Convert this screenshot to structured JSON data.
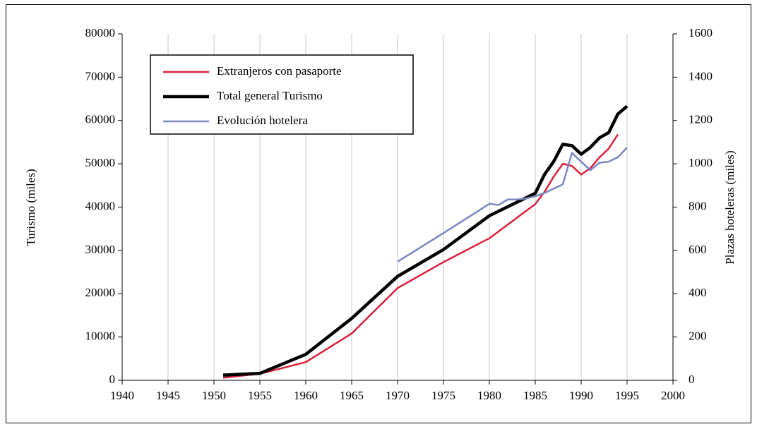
{
  "chart_data": {
    "type": "line",
    "ylabel": "Turismo (miles)",
    "y2label": "Plazas hoteleras (miles)",
    "xlim": [
      1940,
      2000
    ],
    "xticks": [
      1940,
      1945,
      1950,
      1955,
      1960,
      1965,
      1970,
      1975,
      1980,
      1985,
      1990,
      1995,
      2000
    ],
    "ylim": [
      0,
      80000
    ],
    "yticks": [
      0,
      10000,
      20000,
      30000,
      40000,
      50000,
      60000,
      70000,
      80000
    ],
    "y2lim": [
      0,
      1600
    ],
    "y2ticks": [
      0,
      200,
      400,
      600,
      800,
      1000,
      1200,
      1400,
      1600
    ],
    "grid": "x",
    "legend": "upper left",
    "series": [
      {
        "name": "Extranjeros con pasaporte",
        "color": "#d9213a",
        "width": 2.5,
        "x": [
          1951,
          1955,
          1960,
          1965,
          1970,
          1975,
          1980,
          1985,
          1986,
          1987,
          1988,
          1989,
          1990,
          1991,
          1992,
          1993,
          1994
        ],
        "values": [
          600,
          1500,
          4200,
          10800,
          21300,
          27300,
          32800,
          40700,
          43500,
          47000,
          50000,
          49500,
          47500,
          49000,
          51500,
          53500,
          56800
        ]
      },
      {
        "name": "Total general Turismo",
        "color": "#000000",
        "width": 4.5,
        "x": [
          1951,
          1955,
          1960,
          1965,
          1970,
          1975,
          1980,
          1985,
          1986,
          1987,
          1988,
          1989,
          1990,
          1991,
          1992,
          1993,
          1994,
          1995
        ],
        "values": [
          1200,
          1600,
          6000,
          14300,
          24000,
          30200,
          38000,
          43200,
          47500,
          50500,
          54500,
          54200,
          52200,
          53800,
          56000,
          57200,
          61500,
          63300
        ]
      },
      {
        "name": "Evolución hotelera",
        "color": "#7a86c0",
        "width": 2.5,
        "axis": "y2",
        "x": [
          1970,
          1975,
          1980,
          1981,
          1982,
          1983,
          1984,
          1985,
          1986,
          1987,
          1988,
          1989,
          1990,
          1991,
          1992,
          1993,
          1994,
          1995
        ],
        "values": [
          548,
          680,
          815,
          810,
          835,
          835,
          840,
          850,
          865,
          885,
          905,
          1050,
          1010,
          970,
          1005,
          1010,
          1030,
          1075
        ]
      }
    ]
  }
}
